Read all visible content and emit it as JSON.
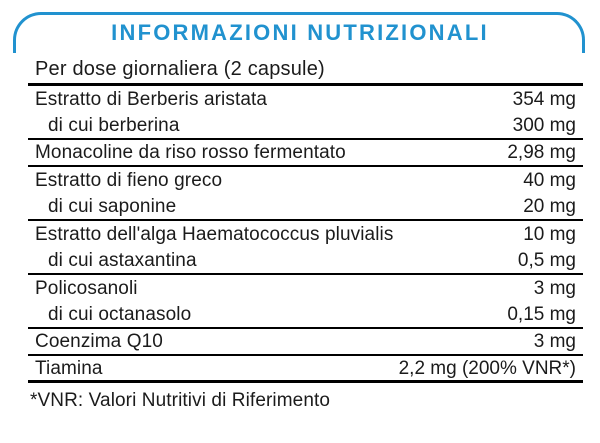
{
  "title": "INFORMAZIONI NUTRIZIONALI",
  "subtitle": "Per dose giornaliera (2 capsule)",
  "colors": {
    "accent_blue": "#2192cf",
    "text": "#1b1b1b",
    "rule": "#000000"
  },
  "table": {
    "unit_note": "per dose",
    "rows": [
      {
        "name": "Estratto di Berberis aristata",
        "value": "354 mg"
      },
      {
        "name": "di cui berberina",
        "value": "300 mg"
      },
      {
        "name": "Monacoline da riso rosso fermentato",
        "value": "2,98 mg"
      },
      {
        "name": "Estratto di fieno greco",
        "value": "40 mg"
      },
      {
        "name": "di cui saponine",
        "value": "20 mg"
      },
      {
        "name": "Estratto dell'alga Haematococcus pluvialis",
        "value": "10 mg"
      },
      {
        "name": "di cui astaxantina",
        "value": "0,5 mg"
      },
      {
        "name": "Policosanoli",
        "value": "3 mg"
      },
      {
        "name": "di cui octanasolo",
        "value": "0,15 mg"
      },
      {
        "name": "Coenzima Q10",
        "value": "3 mg"
      },
      {
        "name": "Tiamina",
        "value": "2,2 mg (200% VNR*)"
      }
    ]
  },
  "footnote": "*VNR: Valori Nutritivi di Riferimento"
}
